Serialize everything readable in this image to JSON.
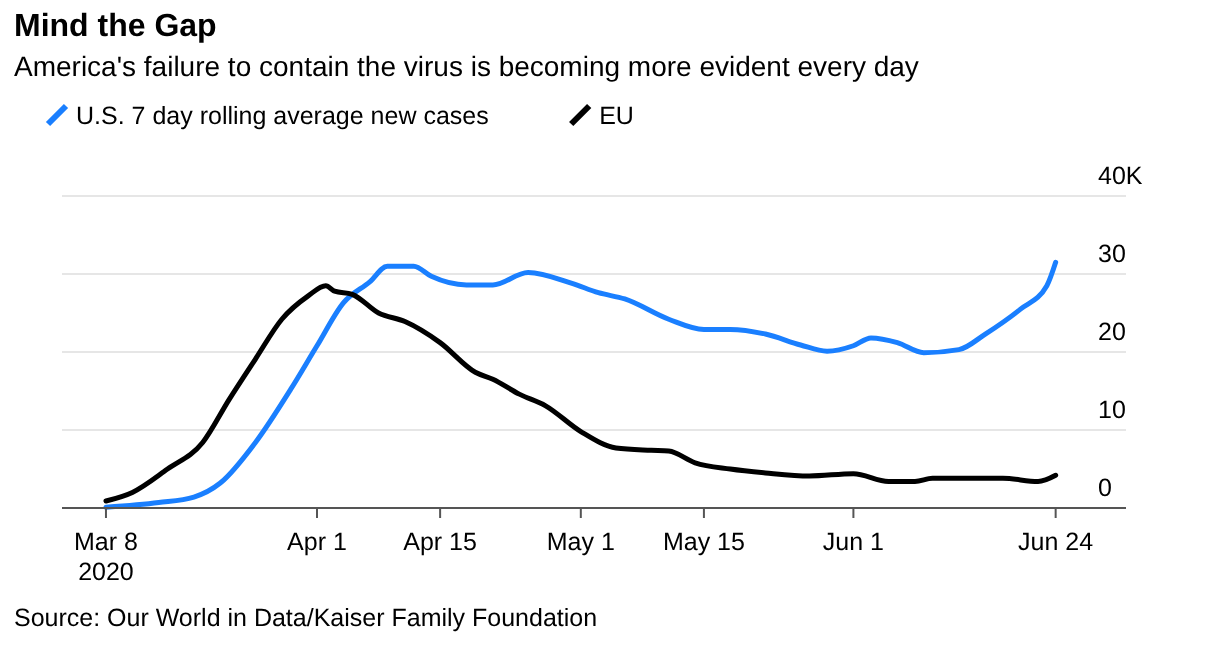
{
  "chart_data": {
    "type": "line",
    "title": "Mind the Gap",
    "subtitle": "America's failure to contain the virus is becoming more evident every day",
    "annotations": [
      "Source: Our World in Data/Kaiser Family Foundation"
    ],
    "xlim": [
      "2020-03-03",
      "2020-07-02"
    ],
    "xticks": [
      {
        "value": "2020-03-08",
        "label": "Mar 8\n2020"
      },
      {
        "value": "2020-04-01",
        "label": "Apr 1"
      },
      {
        "value": "2020-04-15",
        "label": "Apr 15"
      },
      {
        "value": "2020-05-01",
        "label": "May 1"
      },
      {
        "value": "2020-05-15",
        "label": "May 15"
      },
      {
        "value": "2020-06-01",
        "label": "Jun 1"
      },
      {
        "value": "2020-06-24",
        "label": "Jun 24"
      }
    ],
    "ylim": [
      0,
      40
    ],
    "yticks": [
      0,
      10,
      20,
      30,
      {
        "value": 40,
        "label": "40K"
      }
    ],
    "grid": "y",
    "legend": "top left",
    "series": [
      {
        "name": "U.S. 7 day rolling average new cases",
        "color": "#1a7fff",
        "x": [
          "2020-03-08",
          "2020-03-14",
          "2020-03-18",
          "2020-03-21",
          "2020-03-25",
          "2020-03-29",
          "2020-04-01",
          "2020-04-04",
          "2020-04-07",
          "2020-04-09",
          "2020-04-12",
          "2020-04-14",
          "2020-04-18",
          "2020-04-21",
          "2020-04-25",
          "2020-04-30",
          "2020-05-03",
          "2020-05-06",
          "2020-05-11",
          "2020-05-15",
          "2020-05-18",
          "2020-05-22",
          "2020-05-26",
          "2020-05-29",
          "2020-06-01",
          "2020-06-03",
          "2020-06-06",
          "2020-06-09",
          "2020-06-13",
          "2020-06-16",
          "2020-06-20",
          "2020-06-23",
          "2020-06-24"
        ],
        "values": [
          0.1,
          0.7,
          1.4,
          3.2,
          8.4,
          15.2,
          20.8,
          26.3,
          29,
          31,
          31,
          29.7,
          28.6,
          28.6,
          30.2,
          28.8,
          27.6,
          26.8,
          24.2,
          22.9,
          22.9,
          22.3,
          20.9,
          20.1,
          20.8,
          21.8,
          21.2,
          19.9,
          20.3,
          22.3,
          25.5,
          28.5,
          31.5
        ]
      },
      {
        "name": "EU",
        "color": "#000000",
        "x": [
          "2020-03-08",
          "2020-03-11",
          "2020-03-15",
          "2020-03-19",
          "2020-03-22",
          "2020-03-25",
          "2020-03-28",
          "2020-03-31",
          "2020-04-02",
          "2020-04-03",
          "2020-04-05",
          "2020-04-08",
          "2020-04-11",
          "2020-04-15",
          "2020-04-19",
          "2020-04-21",
          "2020-04-24",
          "2020-04-27",
          "2020-05-01",
          "2020-05-05",
          "2020-05-09",
          "2020-05-11",
          "2020-05-14",
          "2020-05-18",
          "2020-05-22",
          "2020-05-27",
          "2020-06-01",
          "2020-06-05",
          "2020-06-08",
          "2020-06-10",
          "2020-06-18",
          "2020-06-22",
          "2020-06-24"
        ],
        "values": [
          0.9,
          2,
          5,
          8.4,
          13.9,
          19.1,
          24.2,
          27.2,
          28.5,
          27.8,
          27.4,
          25,
          23.9,
          21.2,
          17.4,
          16.5,
          14.6,
          13.1,
          9.8,
          7.7,
          7.4,
          7.3,
          5.8,
          5,
          4.5,
          4.1,
          4.4,
          3.4,
          3.4,
          3.8,
          3.8,
          3.4,
          4.2
        ]
      }
    ]
  }
}
